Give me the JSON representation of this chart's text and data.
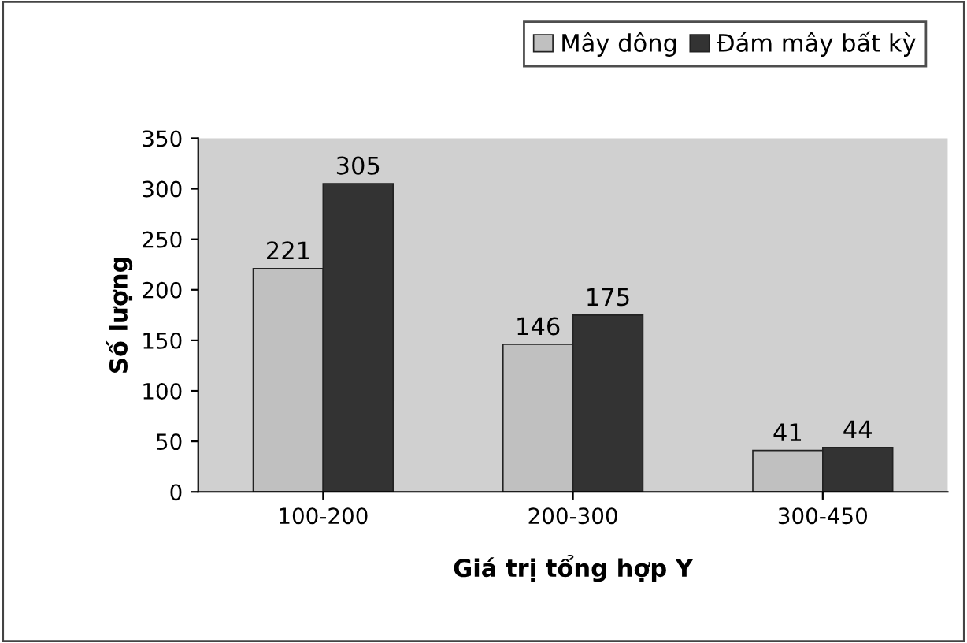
{
  "chart_data": {
    "type": "bar",
    "xlabel": "Giá trị tổng hợp Y",
    "ylabel": "Số lượng",
    "categories": [
      "100-200",
      "200-300",
      "300-450"
    ],
    "series": [
      {
        "name": "Mây dông",
        "color": "#c0c0c0",
        "values": [
          221,
          146,
          41
        ]
      },
      {
        "name": "Đám mây bất kỳ",
        "color": "#333333",
        "values": [
          305,
          175,
          44
        ]
      }
    ],
    "ylim": [
      0,
      350
    ],
    "yticks": [
      0,
      50,
      100,
      150,
      200,
      250,
      300,
      350
    ],
    "data_labels": true,
    "legend": "top right",
    "grid": false
  }
}
